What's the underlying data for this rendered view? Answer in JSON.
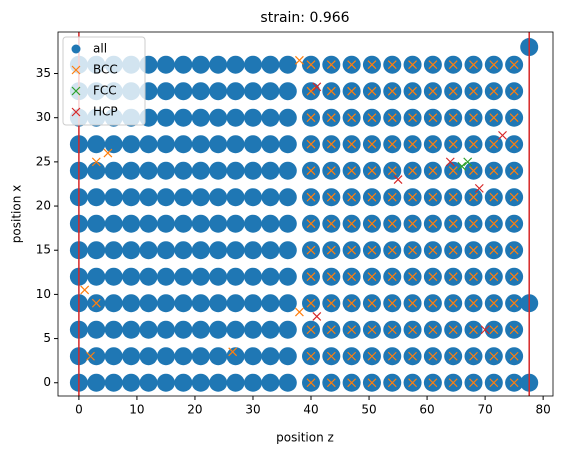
{
  "chart_data": {
    "type": "scatter",
    "title": "strain: 0.966",
    "x_label": "position z",
    "y_label": "position x",
    "xlim": [
      -3.6,
      81.7
    ],
    "ylim": [
      -1.5,
      39.7
    ],
    "xticks": [
      0,
      10,
      20,
      30,
      40,
      50,
      60,
      70,
      80
    ],
    "yticks": [
      0,
      5,
      10,
      15,
      20,
      25,
      30,
      35
    ],
    "vlines": [
      0,
      77.6
    ],
    "vline_color": "#d62728",
    "legend": "upper left",
    "series": [
      {
        "name": "all",
        "color": "#1f77b4",
        "marker": "o",
        "x": [
          0,
          0,
          0,
          0,
          0,
          0,
          0,
          0,
          0,
          0,
          0,
          0,
          0,
          3,
          3,
          3,
          3,
          3,
          3,
          3,
          3,
          3,
          3,
          3,
          3,
          3,
          6,
          6,
          6,
          6,
          6,
          6,
          6,
          6,
          6,
          6,
          6,
          6,
          6,
          9,
          9,
          9,
          9,
          9,
          9,
          9,
          9,
          9,
          9,
          9,
          9,
          9,
          12,
          12,
          12,
          12,
          12,
          12,
          12,
          12,
          12,
          12,
          12,
          12,
          12,
          15,
          15,
          15,
          15,
          15,
          15,
          15,
          15,
          15,
          15,
          15,
          15,
          15,
          18,
          18,
          18,
          18,
          18,
          18,
          18,
          18,
          18,
          18,
          18,
          18,
          18,
          21,
          21,
          21,
          21,
          21,
          21,
          21,
          21,
          21,
          21,
          21,
          21,
          21,
          24,
          24,
          24,
          24,
          24,
          24,
          24,
          24,
          24,
          24,
          24,
          24,
          24,
          27,
          27,
          27,
          27,
          27,
          27,
          27,
          27,
          27,
          27,
          27,
          27,
          27,
          30,
          30,
          30,
          30,
          30,
          30,
          30,
          30,
          30,
          30,
          30,
          30,
          30,
          33,
          33,
          33,
          33,
          33,
          33,
          33,
          33,
          33,
          33,
          33,
          33,
          33,
          36,
          36,
          36,
          36,
          36,
          36,
          36,
          36,
          36,
          36,
          36,
          36,
          36,
          40,
          40,
          40,
          40,
          40,
          40,
          40,
          40,
          40,
          40,
          40,
          40,
          40,
          43.5,
          43.5,
          43.5,
          43.5,
          43.5,
          43.5,
          43.5,
          43.5,
          43.5,
          43.5,
          43.5,
          43.5,
          43.5,
          47,
          47,
          47,
          47,
          47,
          47,
          47,
          47,
          47,
          47,
          47,
          47,
          47,
          50.5,
          50.5,
          50.5,
          50.5,
          50.5,
          50.5,
          50.5,
          50.5,
          50.5,
          50.5,
          50.5,
          50.5,
          50.5,
          54,
          54,
          54,
          54,
          54,
          54,
          54,
          54,
          54,
          54,
          54,
          54,
          54,
          57.5,
          57.5,
          57.5,
          57.5,
          57.5,
          57.5,
          57.5,
          57.5,
          57.5,
          57.5,
          57.5,
          57.5,
          57.5,
          61,
          61,
          61,
          61,
          61,
          61,
          61,
          61,
          61,
          61,
          61,
          61,
          61,
          64.5,
          64.5,
          64.5,
          64.5,
          64.5,
          64.5,
          64.5,
          64.5,
          64.5,
          64.5,
          64.5,
          64.5,
          64.5,
          68,
          68,
          68,
          68,
          68,
          68,
          68,
          68,
          68,
          68,
          68,
          68,
          68,
          71.5,
          71.5,
          71.5,
          71.5,
          71.5,
          71.5,
          71.5,
          71.5,
          71.5,
          71.5,
          71.5,
          71.5,
          71.5,
          75,
          75,
          75,
          75,
          75,
          75,
          75,
          75,
          75,
          75,
          75,
          75,
          75,
          77.6,
          77.6,
          77.6
        ],
        "values": [
          0,
          3,
          6,
          9,
          12,
          15,
          18,
          21,
          24,
          27,
          30,
          33,
          36,
          0,
          3,
          6,
          9,
          12,
          15,
          18,
          21,
          24,
          27,
          30,
          33,
          36,
          0,
          3,
          6,
          9,
          12,
          15,
          18,
          21,
          24,
          27,
          30,
          33,
          36,
          0,
          3,
          6,
          9,
          12,
          15,
          18,
          21,
          24,
          27,
          30,
          33,
          36,
          0,
          3,
          6,
          9,
          12,
          15,
          18,
          21,
          24,
          27,
          30,
          33,
          36,
          0,
          3,
          6,
          9,
          12,
          15,
          18,
          21,
          24,
          27,
          30,
          33,
          36,
          0,
          3,
          6,
          9,
          12,
          15,
          18,
          21,
          24,
          27,
          30,
          33,
          36,
          0,
          3,
          6,
          9,
          12,
          15,
          18,
          21,
          24,
          27,
          30,
          33,
          36,
          0,
          3,
          6,
          9,
          12,
          15,
          18,
          21,
          24,
          27,
          30,
          33,
          36,
          0,
          3,
          6,
          9,
          12,
          15,
          18,
          21,
          24,
          27,
          30,
          33,
          36,
          0,
          3,
          6,
          9,
          12,
          15,
          18,
          21,
          24,
          27,
          30,
          33,
          36,
          0,
          3,
          6,
          9,
          12,
          15,
          18,
          21,
          24,
          27,
          30,
          33,
          36,
          0,
          3,
          6,
          9,
          12,
          15,
          18,
          21,
          24,
          27,
          30,
          33,
          36,
          0,
          3,
          6,
          9,
          12,
          15,
          18,
          21,
          24,
          27,
          30,
          33,
          36,
          0,
          3,
          6,
          9,
          12,
          15,
          18,
          21,
          24,
          27,
          30,
          33,
          36,
          0,
          3,
          6,
          9,
          12,
          15,
          18,
          21,
          24,
          27,
          30,
          33,
          36,
          0,
          3,
          6,
          9,
          12,
          15,
          18,
          21,
          24,
          27,
          30,
          33,
          36,
          0,
          3,
          6,
          9,
          12,
          15,
          18,
          21,
          24,
          27,
          30,
          33,
          36,
          0,
          3,
          6,
          9,
          12,
          15,
          18,
          21,
          24,
          27,
          30,
          33,
          36,
          0,
          3,
          6,
          9,
          12,
          15,
          18,
          21,
          24,
          27,
          30,
          33,
          36,
          0,
          3,
          6,
          9,
          12,
          15,
          18,
          21,
          24,
          27,
          30,
          33,
          36,
          0,
          3,
          6,
          9,
          12,
          15,
          18,
          21,
          24,
          27,
          30,
          33,
          36,
          0,
          3,
          6,
          9,
          12,
          15,
          18,
          21,
          24,
          27,
          30,
          33,
          36,
          0,
          3,
          6,
          9,
          12,
          15,
          18,
          21,
          24,
          27,
          30,
          33,
          36,
          0,
          9,
          38
        ]
      },
      {
        "name": "BCC",
        "color": "#ff7f0e",
        "marker": "x",
        "x": [
          40,
          40,
          40,
          40,
          40,
          40,
          40,
          40,
          40,
          40,
          40,
          40,
          40,
          43.5,
          43.5,
          43.5,
          43.5,
          43.5,
          43.5,
          43.5,
          43.5,
          43.5,
          43.5,
          43.5,
          43.5,
          43.5,
          47,
          47,
          47,
          47,
          47,
          47,
          47,
          47,
          47,
          47,
          47,
          47,
          47,
          50.5,
          50.5,
          50.5,
          50.5,
          50.5,
          50.5,
          50.5,
          50.5,
          50.5,
          50.5,
          50.5,
          50.5,
          50.5,
          54,
          54,
          54,
          54,
          54,
          54,
          54,
          54,
          54,
          54,
          54,
          54,
          54,
          57.5,
          57.5,
          57.5,
          57.5,
          57.5,
          57.5,
          57.5,
          57.5,
          57.5,
          57.5,
          57.5,
          57.5,
          57.5,
          61,
          61,
          61,
          61,
          61,
          61,
          61,
          61,
          61,
          61,
          61,
          61,
          61,
          64.5,
          64.5,
          64.5,
          64.5,
          64.5,
          64.5,
          64.5,
          64.5,
          64.5,
          64.5,
          64.5,
          64.5,
          64.5,
          68,
          68,
          68,
          68,
          68,
          68,
          68,
          68,
          68,
          68,
          68,
          68,
          68,
          71.5,
          71.5,
          71.5,
          71.5,
          71.5,
          71.5,
          71.5,
          71.5,
          71.5,
          71.5,
          71.5,
          71.5,
          71.5,
          75,
          75,
          75,
          75,
          75,
          75,
          75,
          75,
          75,
          75,
          75,
          75,
          75,
          1,
          2,
          3,
          26.5,
          3,
          5,
          38,
          38
        ],
        "values": [
          0,
          3,
          6,
          9,
          12,
          15,
          18,
          21,
          24,
          27,
          30,
          33,
          36,
          0,
          3,
          6,
          9,
          12,
          15,
          18,
          21,
          24,
          27,
          30,
          33,
          36,
          0,
          3,
          6,
          9,
          12,
          15,
          18,
          21,
          24,
          27,
          30,
          33,
          36,
          0,
          3,
          6,
          9,
          12,
          15,
          18,
          21,
          24,
          27,
          30,
          33,
          36,
          0,
          3,
          6,
          9,
          12,
          15,
          18,
          21,
          24,
          27,
          30,
          33,
          36,
          0,
          3,
          6,
          9,
          12,
          15,
          18,
          21,
          24,
          27,
          30,
          33,
          36,
          0,
          3,
          6,
          9,
          12,
          15,
          18,
          21,
          24,
          27,
          30,
          33,
          36,
          0,
          3,
          6,
          9,
          12,
          15,
          18,
          21,
          24,
          27,
          30,
          33,
          36,
          0,
          3,
          6,
          9,
          12,
          15,
          18,
          21,
          24,
          27,
          30,
          33,
          36,
          0,
          3,
          6,
          9,
          12,
          15,
          18,
          21,
          24,
          27,
          30,
          33,
          36,
          0,
          3,
          6,
          9,
          12,
          15,
          18,
          21,
          24,
          27,
          30,
          33,
          36,
          10.5,
          3,
          9,
          3.5,
          25,
          26,
          36.5,
          8
        ]
      },
      {
        "name": "FCC",
        "color": "#2ca02c",
        "marker": "x",
        "x": [
          67,
          66
        ],
        "values": [
          25,
          24.5
        ]
      },
      {
        "name": "HCP",
        "color": "#d62728",
        "marker": "x",
        "x": [
          41,
          64,
          69,
          55,
          73,
          70,
          41
        ],
        "values": [
          33.5,
          25,
          22,
          23,
          28,
          6,
          7.5
        ]
      }
    ]
  }
}
